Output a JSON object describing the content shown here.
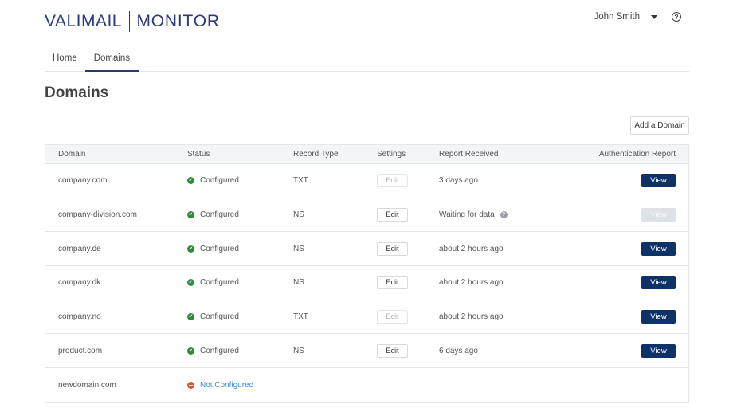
{
  "header": {
    "brand": "VALIMAIL",
    "product": "MONITOR",
    "user_name": "John Smith",
    "help_icon": "?"
  },
  "tabs": [
    {
      "label": "Home",
      "active": false
    },
    {
      "label": "Domains",
      "active": true
    }
  ],
  "page": {
    "title": "Domains",
    "add_button": "Add a Domain"
  },
  "table": {
    "columns": [
      "Domain",
      "Status",
      "Record Type",
      "Settings",
      "Report Received",
      "Authentication Report"
    ],
    "rows": [
      {
        "domain": "company.com",
        "status": "Configured",
        "record_type": "TXT",
        "settings": "Edit",
        "settings_enabled": false,
        "report": "3 days ago",
        "auth": "View",
        "auth_enabled": true
      },
      {
        "domain": "company-division.com",
        "status": "Configured",
        "record_type": "NS",
        "settings": "Edit",
        "settings_enabled": true,
        "report": "Waiting for data",
        "auth": "View",
        "auth_enabled": false
      },
      {
        "domain": "company.de",
        "status": "Configured",
        "record_type": "NS",
        "settings": "Edit",
        "settings_enabled": true,
        "report": "about 2 hours ago",
        "auth": "View",
        "auth_enabled": true
      },
      {
        "domain": "company.dk",
        "status": "Configured",
        "record_type": "NS",
        "settings": "Edit",
        "settings_enabled": true,
        "report": "about 2 hours ago",
        "auth": "View",
        "auth_enabled": true
      },
      {
        "domain": "company.no",
        "status": "Configured",
        "record_type": "TXT",
        "settings": "Edit",
        "settings_enabled": false,
        "report": "about 2 hours ago",
        "auth": "View",
        "auth_enabled": true
      },
      {
        "domain": "product.com",
        "status": "Configured",
        "record_type": "NS",
        "settings": "Edit",
        "settings_enabled": true,
        "report": "6 days ago",
        "auth": "View",
        "auth_enabled": true
      },
      {
        "domain": "newdomain.com",
        "status": "Not Configured",
        "record_type": "",
        "settings": "",
        "report": "",
        "auth": ""
      }
    ]
  },
  "colors": {
    "brand": "#2b3a7c",
    "primary_button": "#0e3268",
    "ok": "#2e8b3e",
    "error": "#e0542a",
    "link": "#3a8fd6"
  }
}
